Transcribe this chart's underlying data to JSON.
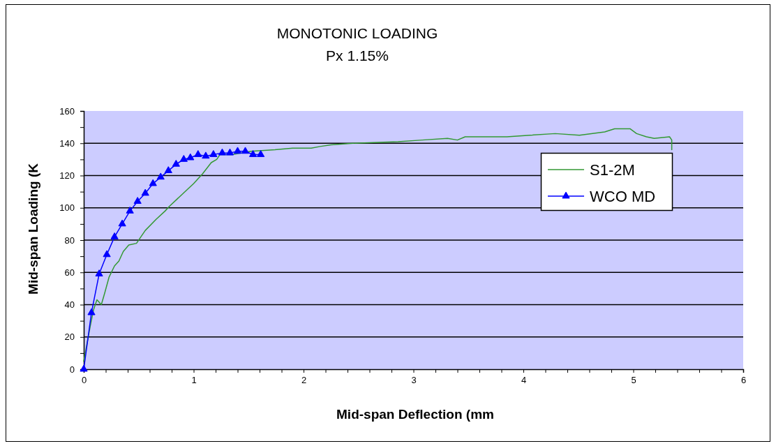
{
  "chart_data": {
    "type": "line",
    "title": "MONOTONIC LOADING",
    "subtitle": "Px 1.15%",
    "xlabel": "Mid-span Deflection (mm",
    "ylabel": "Mid-span Loading (K",
    "xlim": [
      0,
      6
    ],
    "xticks": [
      0,
      {
        "value": 0.2,
        "label": null
      },
      {
        "value": 0.4,
        "label": null
      },
      {
        "value": 0.6,
        "label": null
      },
      {
        "value": 0.8,
        "label": null
      },
      1,
      {
        "value": 1.2,
        "label": null
      },
      {
        "value": 1.4,
        "label": null
      },
      {
        "value": 1.6,
        "label": null
      },
      {
        "value": 1.8,
        "label": null
      },
      2,
      {
        "value": 2.2,
        "label": null
      },
      {
        "value": 2.4,
        "label": null
      },
      {
        "value": 2.6,
        "label": null
      },
      {
        "value": 2.8,
        "label": null
      },
      3,
      {
        "value": 3.2,
        "label": null
      },
      {
        "value": 3.4,
        "label": null
      },
      {
        "value": 3.6,
        "label": null
      },
      {
        "value": 3.8,
        "label": null
      },
      4,
      {
        "value": 4.2,
        "label": null
      },
      {
        "value": 4.4,
        "label": null
      },
      {
        "value": 4.6,
        "label": null
      },
      {
        "value": 4.8,
        "label": null
      },
      5,
      {
        "value": 5.2,
        "label": null
      },
      {
        "value": 5.4,
        "label": null
      },
      {
        "value": 5.6,
        "label": null
      },
      {
        "value": 5.8,
        "label": null
      },
      6
    ],
    "ylim": [
      0,
      160
    ],
    "yticks": [
      0,
      {
        "value": 10,
        "label": null
      },
      20,
      {
        "value": 30,
        "label": null
      },
      40,
      {
        "value": 50,
        "label": null
      },
      60,
      {
        "value": 70,
        "label": null
      },
      80,
      {
        "value": 90,
        "label": null
      },
      100,
      {
        "value": 110,
        "label": null
      },
      120,
      {
        "value": 130,
        "label": null
      },
      140,
      {
        "value": 150,
        "label": null
      },
      160
    ],
    "grid": "y",
    "legend": "top right",
    "series": [
      {
        "name": "S1-2M",
        "color": "#339933",
        "marker": "none",
        "x": [
          0,
          0.03,
          0.06,
          0.09,
          0.12,
          0.16,
          0.19,
          0.23,
          0.28,
          0.32,
          0.36,
          0.41,
          0.48,
          0.51,
          0.56,
          0.66,
          0.74,
          0.78,
          0.89,
          1.0,
          1.08,
          1.16,
          1.21,
          1.24,
          1.35,
          1.52,
          1.74,
          1.9,
          2.07,
          2.15,
          2.25,
          2.45,
          2.86,
          3.08,
          3.31,
          3.4,
          3.47,
          3.63,
          3.85,
          4.06,
          4.29,
          4.51,
          4.74,
          4.83,
          4.97,
          5.03,
          5.12,
          5.19,
          5.33,
          5.35,
          5.35
        ],
        "values": [
          5,
          16,
          27,
          37,
          43,
          40,
          47,
          57,
          64,
          67,
          73,
          77,
          78,
          81,
          86,
          93,
          98,
          101,
          108,
          115,
          121,
          128,
          130,
          133,
          133,
          135,
          136,
          137,
          137,
          138,
          139,
          140,
          141,
          142,
          143,
          142,
          144,
          144,
          144,
          145,
          146,
          145,
          147,
          149,
          149,
          146,
          144,
          143,
          144,
          142,
          136
        ]
      },
      {
        "name": "WCO MD",
        "color": "#0000ff",
        "marker": "triangle",
        "x": [
          0,
          0.07,
          0.14,
          0.21,
          0.28,
          0.35,
          0.42,
          0.49,
          0.56,
          0.63,
          0.7,
          0.77,
          0.84,
          0.91,
          0.97,
          1.04,
          1.11,
          1.18,
          1.26,
          1.33,
          1.4,
          1.47,
          1.54,
          1.61
        ],
        "values": [
          0,
          35,
          59,
          71,
          82,
          90,
          98,
          104,
          109,
          115,
          119,
          123,
          127,
          130,
          131,
          133,
          132,
          133,
          134,
          134,
          135,
          135,
          133,
          133
        ]
      }
    ]
  }
}
